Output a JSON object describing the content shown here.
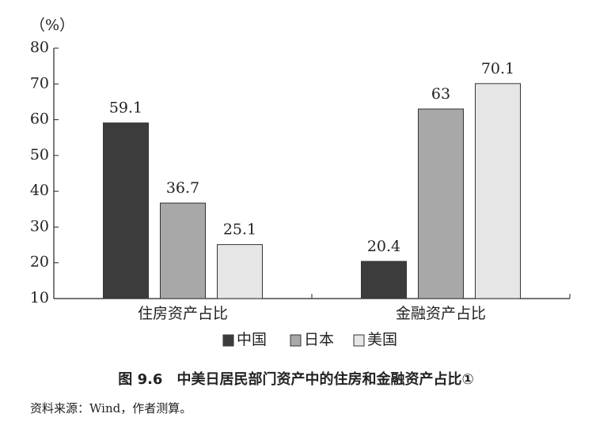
{
  "chart_data": {
    "type": "bar",
    "y_label": "（%）",
    "categories": [
      "住房资产占比",
      "金融资产占比"
    ],
    "series": [
      {
        "name": "中国",
        "color": "#3c3c3c",
        "values": [
          59.1,
          20.4
        ]
      },
      {
        "name": "日本",
        "color": "#a8a8a8",
        "values": [
          36.7,
          63
        ]
      },
      {
        "name": "美国",
        "color": "#e6e6e6",
        "values": [
          25.1,
          70.1
        ]
      }
    ],
    "ylim": [
      10,
      80
    ],
    "yticks": [
      10,
      20,
      30,
      40,
      50,
      60,
      70,
      80
    ],
    "legend": "bottom",
    "caption": "图 9.6　中美日居民部门资产中的住房和金融资产占比①",
    "source": "资料来源：Wind，作者测算。"
  }
}
